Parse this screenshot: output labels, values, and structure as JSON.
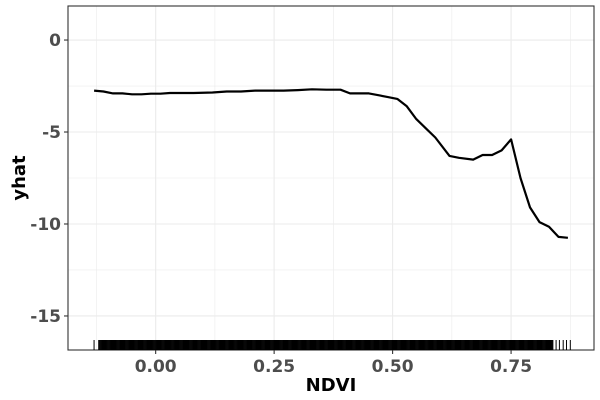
{
  "chart_data": {
    "type": "line",
    "title": "",
    "xlabel": "NDVI",
    "ylabel": "yhat",
    "xlim": [
      -0.185,
      0.925
    ],
    "ylim": [
      -16.85,
      1.85
    ],
    "x_ticks": [
      0.0,
      0.25,
      0.5,
      0.75
    ],
    "x_tick_labels": [
      "0.00",
      "0.25",
      "0.50",
      "0.75"
    ],
    "y_ticks": [
      0,
      -5,
      -10,
      -15
    ],
    "y_tick_labels": [
      "0",
      "-5",
      "-10",
      "-15"
    ],
    "grid": true,
    "legend": "none",
    "line_color": "#000000",
    "rug_color": "#000000",
    "series": [
      {
        "x": [
          -0.13,
          -0.11,
          -0.09,
          -0.07,
          -0.05,
          -0.03,
          -0.01,
          0.01,
          0.03,
          0.05,
          0.08,
          0.12,
          0.15,
          0.18,
          0.21,
          0.24,
          0.27,
          0.3,
          0.33,
          0.36,
          0.39,
          0.41,
          0.43,
          0.45,
          0.47,
          0.49,
          0.51,
          0.53,
          0.55,
          0.57,
          0.59,
          0.62,
          0.64,
          0.67,
          0.69,
          0.71,
          0.73,
          0.75,
          0.77,
          0.79,
          0.81,
          0.83,
          0.85,
          0.87
        ],
        "y": [
          -2.75,
          -2.8,
          -2.9,
          -2.9,
          -2.95,
          -2.95,
          -2.92,
          -2.92,
          -2.88,
          -2.88,
          -2.88,
          -2.85,
          -2.8,
          -2.8,
          -2.75,
          -2.75,
          -2.75,
          -2.72,
          -2.68,
          -2.7,
          -2.7,
          -2.9,
          -2.9,
          -2.9,
          -3.0,
          -3.1,
          -3.2,
          -3.6,
          -4.3,
          -4.8,
          -5.3,
          -6.3,
          -6.4,
          -6.5,
          -6.25,
          -6.25,
          -6.0,
          -5.4,
          -7.5,
          -9.1,
          -9.9,
          -10.15,
          -10.7,
          -10.75
        ]
      }
    ],
    "rug": {
      "x_min": -0.13,
      "x_max": 0.875,
      "dense_from": -0.12,
      "dense_to": 0.84
    }
  }
}
